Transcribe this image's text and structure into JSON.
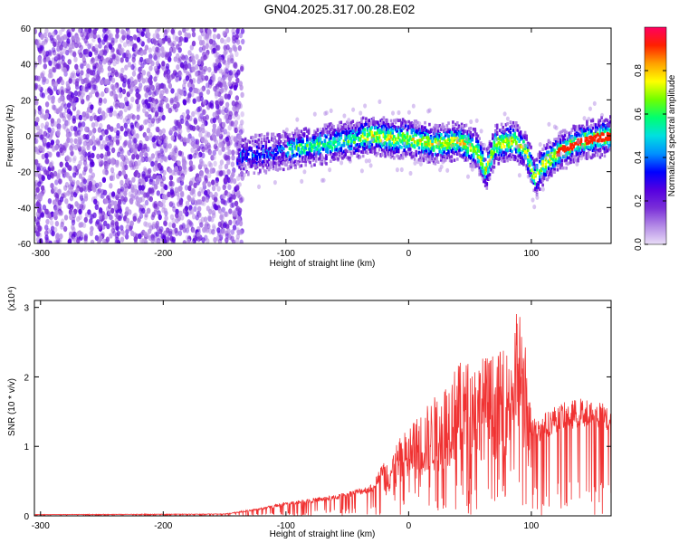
{
  "title": "GN04.2025.317.00.28.E02",
  "colors": {
    "spectrogram_cmap": [
      "#e9ddf7",
      "#b48be6",
      "#7a2fd8",
      "#5500e0",
      "#0000ff",
      "#0090ff",
      "#00e0e0",
      "#00ff70",
      "#70ff00",
      "#ffff00",
      "#ffa000",
      "#ff2000",
      "#ff0060"
    ],
    "snr_line": "#f03232"
  },
  "chart_data": [
    {
      "type": "heatmap",
      "xlabel": "Height of straight line (km)",
      "ylabel": "Frequency (Hz)",
      "xlim": [
        -305,
        165
      ],
      "ylim": [
        -60,
        60
      ],
      "xticks": [
        -300,
        -200,
        -100,
        0,
        100
      ],
      "yticks": [
        -60,
        -40,
        -20,
        0,
        20,
        40,
        60
      ],
      "colorbar": {
        "label": "Normalized spectral amplitude",
        "range": [
          0.0,
          1.0
        ],
        "ticks": [
          0.0,
          0.2,
          0.4,
          0.6,
          0.8
        ]
      },
      "ridge": {
        "description_points_x": [
          -140,
          -100,
          -60,
          -30,
          -10,
          0,
          20,
          40,
          55,
          62,
          70,
          85,
          95,
          102,
          110,
          125,
          140,
          165
        ],
        "frequency_hz": [
          -12,
          -8,
          -4,
          0,
          -2,
          -2,
          -5,
          -3,
          -8,
          -20,
          -5,
          -3,
          -8,
          -24,
          -15,
          -8,
          -3,
          0
        ]
      },
      "noise_region_x": [
        -305,
        -140
      ]
    },
    {
      "type": "line",
      "xlabel": "Height of straight line (km)",
      "ylabel": "SNR (10 * v/v)",
      "y_multiplier": "(x10⁴)",
      "xlim": [
        -305,
        165
      ],
      "ylim": [
        0,
        3.1
      ],
      "xticks": [
        -300,
        -200,
        -100,
        0,
        100
      ],
      "yticks": [
        0,
        1,
        2,
        3
      ],
      "series": [
        {
          "envelope_x": [
            -305,
            -150,
            -125,
            -100,
            -60,
            -30,
            -20,
            0,
            20,
            40,
            60,
            80,
            90,
            95,
            100,
            105,
            120,
            140,
            165
          ],
          "envelope_y": [
            0.02,
            0.03,
            0.1,
            0.2,
            0.3,
            0.45,
            0.8,
            1.3,
            1.7,
            2.2,
            2.3,
            2.4,
            3.1,
            2.5,
            1.5,
            1.4,
            1.6,
            1.7,
            1.6
          ]
        }
      ]
    }
  ]
}
